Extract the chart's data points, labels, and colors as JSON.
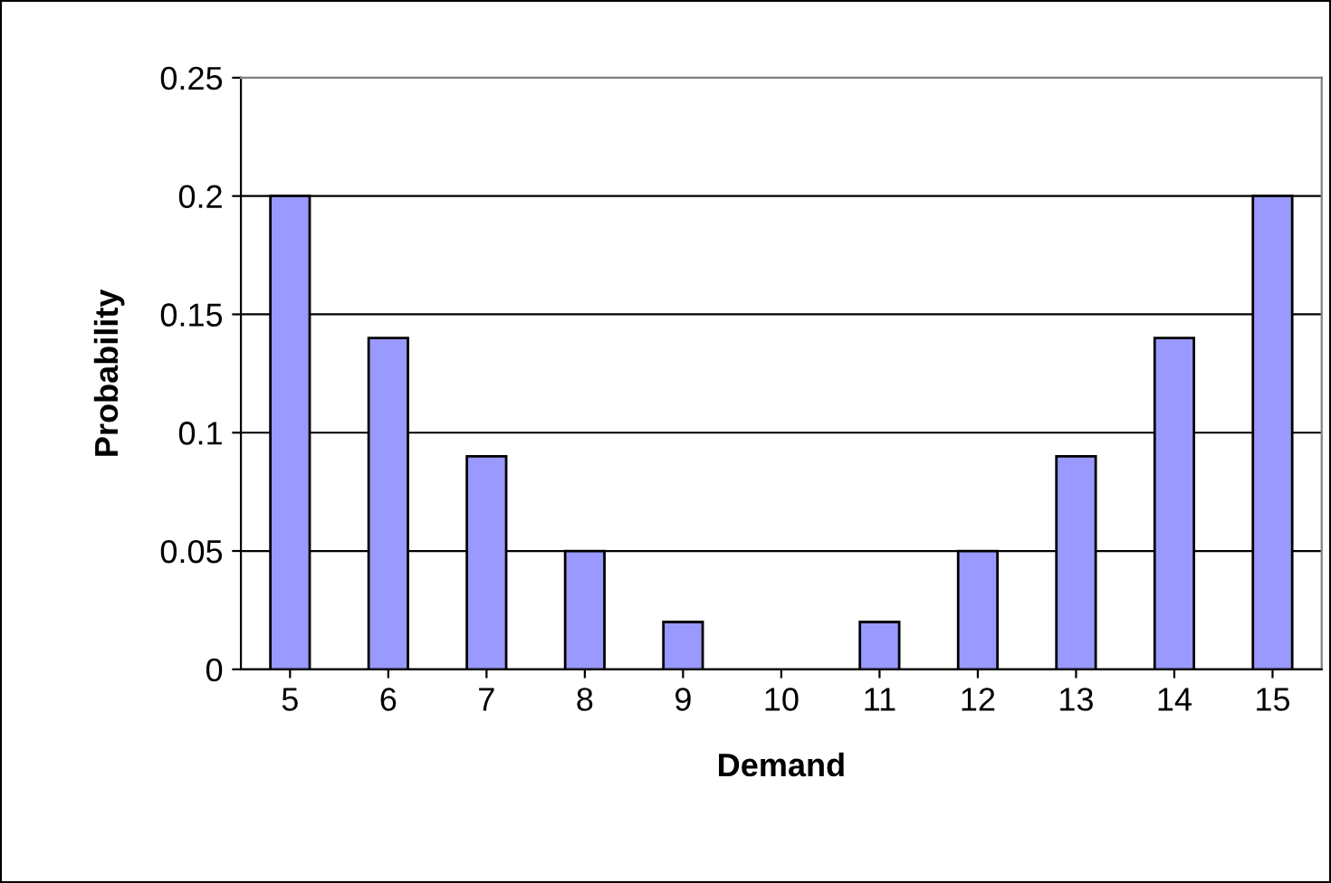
{
  "chart_data": {
    "type": "bar",
    "xlabel": "Demand",
    "ylabel": "Probability",
    "categories": [
      "5",
      "6",
      "7",
      "8",
      "9",
      "10",
      "11",
      "12",
      "13",
      "14",
      "15"
    ],
    "values": [
      0.2,
      0.14,
      0.09,
      0.05,
      0.02,
      0,
      0.02,
      0.05,
      0.09,
      0.14,
      0.2
    ],
    "color": "#9999ff",
    "ylim": [
      0,
      0.25
    ],
    "yticks": [
      0,
      0.05,
      0.1,
      0.15,
      0.2,
      0.25
    ],
    "grid": "y",
    "legend": false
  }
}
